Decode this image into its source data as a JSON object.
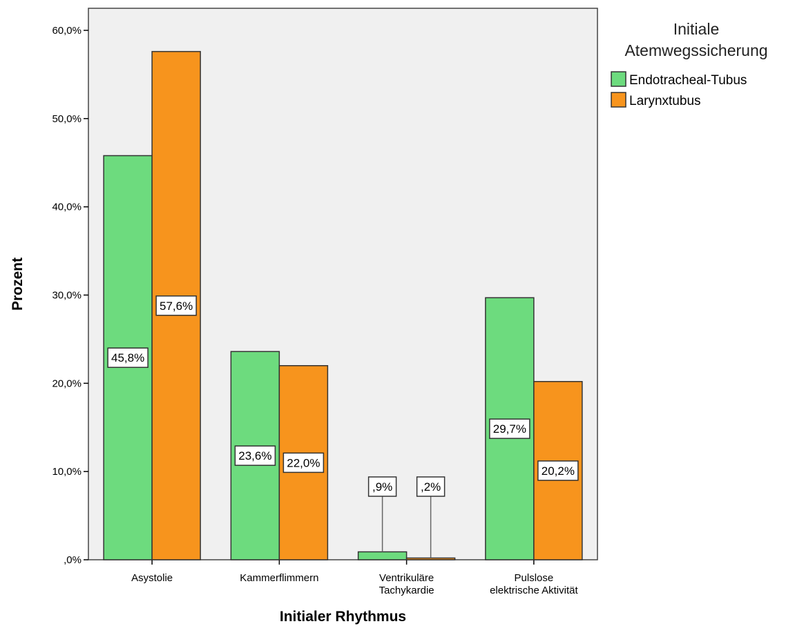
{
  "chart_data": {
    "type": "bar",
    "xlabel": "Initialer Rhythmus",
    "ylabel": "Prozent",
    "ylim": [
      0,
      62.5
    ],
    "yticks": [
      0,
      10,
      20,
      30,
      40,
      50,
      60
    ],
    "ytick_labels": [
      ",0%",
      "10,0%",
      "20,0%",
      "30,0%",
      "40,0%",
      "50,0%",
      "60,0%"
    ],
    "categories": [
      [
        "Asystolie"
      ],
      [
        "Kammerflimmern"
      ],
      [
        "Ventrikuläre",
        "Tachykardie"
      ],
      [
        "Pulslose",
        "elektrische Aktivität"
      ]
    ],
    "legend_title": [
      "Initiale",
      "Atemwegssicherung"
    ],
    "legend_position": "right",
    "grid": false,
    "series": [
      {
        "name": "Endotracheal-Tubus",
        "color": "#6ddb7e",
        "values": [
          45.8,
          23.6,
          0.9,
          29.7
        ],
        "labels": [
          "45,8%",
          "23,6%",
          ",9%",
          "29,7%"
        ]
      },
      {
        "name": "Larynxtubus",
        "color": "#f7941d",
        "values": [
          57.6,
          22.0,
          0.2,
          20.2
        ],
        "labels": [
          "57,6%",
          "22,0%",
          ",2%",
          "20,2%"
        ]
      }
    ],
    "plot_background": "#f0f0f0"
  }
}
